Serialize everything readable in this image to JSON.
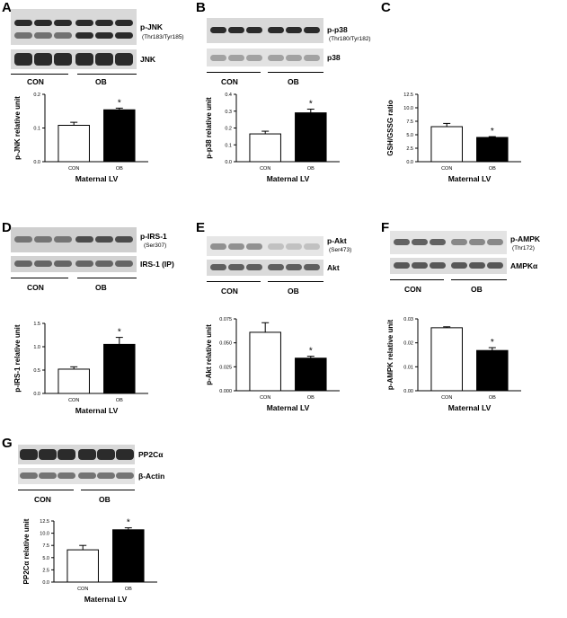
{
  "panels": {
    "A": {
      "letter": "A",
      "blot_labels": [
        "p-JNK",
        "(Thr183/Tyr185)",
        "JNK"
      ],
      "groups": [
        "CON",
        "OB"
      ],
      "chart_data": {
        "type": "bar",
        "categories": [
          "CON",
          "OB"
        ],
        "values": [
          0.108,
          0.154
        ],
        "errors": [
          0.009,
          0.005
        ],
        "yticks": [
          "0.0",
          "0.1",
          "0.2"
        ],
        "ylim": [
          0,
          0.2
        ],
        "ylabel": "p-JNK relative unit",
        "xlabel": "Maternal LV",
        "annotation": "*",
        "colors": [
          "#ffffff",
          "#000000"
        ]
      }
    },
    "B": {
      "letter": "B",
      "blot_labels": [
        "p-p38",
        "(Thr180/Tyr182)",
        "p38"
      ],
      "groups": [
        "CON",
        "OB"
      ],
      "chart_data": {
        "type": "bar",
        "categories": [
          "CON",
          "OB"
        ],
        "values": [
          0.165,
          0.29
        ],
        "errors": [
          0.016,
          0.022
        ],
        "yticks": [
          "0.0",
          "0.1",
          "0.2",
          "0.3",
          "0.4"
        ],
        "ylim": [
          0,
          0.4
        ],
        "ylabel": "p-p38 relative unit",
        "xlabel": "Maternal LV",
        "annotation": "*",
        "colors": [
          "#ffffff",
          "#000000"
        ]
      }
    },
    "C": {
      "letter": "C",
      "chart_data": {
        "type": "bar",
        "categories": [
          "CON",
          "OB"
        ],
        "values": [
          6.5,
          4.5
        ],
        "errors": [
          0.6,
          0.15
        ],
        "yticks": [
          "0.0",
          "2.5",
          "5.0",
          "7.5",
          "10.0",
          "12.5"
        ],
        "ylim": [
          0,
          12.5
        ],
        "ylabel": "GSH/GSSG ratio",
        "xlabel": "Maternal LV",
        "annotation": "*",
        "colors": [
          "#ffffff",
          "#000000"
        ]
      }
    },
    "D": {
      "letter": "D",
      "blot_labels": [
        "p-IRS-1",
        "(Ser307)",
        "IRS-1 (IP)"
      ],
      "groups": [
        "CON",
        "OB"
      ],
      "chart_data": {
        "type": "bar",
        "categories": [
          "CON",
          "OB"
        ],
        "values": [
          0.52,
          1.05
        ],
        "errors": [
          0.05,
          0.15
        ],
        "yticks": [
          "0.0",
          "0.5",
          "1.0",
          "1.5"
        ],
        "ylim": [
          0,
          1.5
        ],
        "ylabel": "p-IRS-1 relative unit",
        "xlabel": "Maternal LV",
        "annotation": "*",
        "colors": [
          "#ffffff",
          "#000000"
        ]
      }
    },
    "E": {
      "letter": "E",
      "blot_labels": [
        "p-Akt",
        "(Ser473)",
        "Akt"
      ],
      "groups": [
        "CON",
        "OB"
      ],
      "chart_data": {
        "type": "bar",
        "categories": [
          "CON",
          "OB"
        ],
        "values": [
          0.061,
          0.034
        ],
        "errors": [
          0.01,
          0.002
        ],
        "yticks": [
          "0.000",
          "0.025",
          "0.050",
          "0.075"
        ],
        "ylim": [
          0,
          0.075
        ],
        "ylabel": "p-Akt relative unit",
        "xlabel": "Maternal LV",
        "annotation": "*",
        "colors": [
          "#ffffff",
          "#000000"
        ]
      }
    },
    "F": {
      "letter": "F",
      "blot_labels": [
        "p-AMPK",
        "(Thr172)",
        "AMPKα"
      ],
      "groups": [
        "CON",
        "OB"
      ],
      "chart_data": {
        "type": "bar",
        "categories": [
          "CON",
          "OB"
        ],
        "values": [
          0.0263,
          0.0168
        ],
        "errors": [
          0.0004,
          0.0012
        ],
        "yticks": [
          "0.00",
          "0.01",
          "0.02",
          "0.03"
        ],
        "ylim": [
          0,
          0.03
        ],
        "ylabel": "p-AMPK relative unit",
        "xlabel": "Maternal LV",
        "annotation": "*",
        "colors": [
          "#ffffff",
          "#000000"
        ]
      }
    },
    "G": {
      "letter": "G",
      "blot_labels": [
        "PP2Cα",
        "β-Actin"
      ],
      "groups": [
        "CON",
        "OB"
      ],
      "chart_data": {
        "type": "bar",
        "categories": [
          "CON",
          "OB"
        ],
        "values": [
          6.6,
          10.7
        ],
        "errors": [
          0.9,
          0.4
        ],
        "yticks": [
          "0.0",
          "2.5",
          "5.0",
          "7.5",
          "10.0",
          "12.5"
        ],
        "ylim": [
          0,
          12.5
        ],
        "ylabel": "PP2Cα relative unit",
        "xlabel": "Maternal LV",
        "annotation": "*",
        "colors": [
          "#ffffff",
          "#000000"
        ]
      }
    }
  }
}
